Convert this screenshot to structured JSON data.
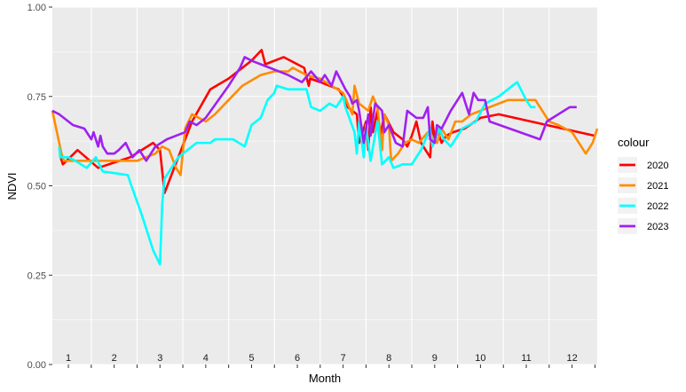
{
  "chart_data": {
    "type": "line",
    "xlabel": "Month",
    "ylabel": "NDVI",
    "xlim": [
      0.65,
      12.55
    ],
    "ylim": [
      0,
      1
    ],
    "yticks": [
      "0.00",
      "0.25",
      "0.50",
      "0.75",
      "1.00"
    ],
    "month_labels": [
      "1",
      "2",
      "3",
      "4",
      "5",
      "6",
      "7",
      "8",
      "9",
      "10",
      "11",
      "12"
    ],
    "legend": {
      "title": "colour",
      "position": "right"
    },
    "grid": true,
    "series": [
      {
        "name": "2020",
        "color": "#ff0000",
        "points": [
          [
            0.83,
            0.58
          ],
          [
            0.88,
            0.56
          ],
          [
            1.2,
            0.6
          ],
          [
            1.65,
            0.55
          ],
          [
            2.35,
            0.58
          ],
          [
            2.85,
            0.62
          ],
          [
            3.0,
            0.6
          ],
          [
            3.1,
            0.48
          ],
          [
            3.4,
            0.58
          ],
          [
            3.7,
            0.68
          ],
          [
            4.1,
            0.77
          ],
          [
            4.5,
            0.8
          ],
          [
            5.0,
            0.85
          ],
          [
            5.22,
            0.88
          ],
          [
            5.3,
            0.84
          ],
          [
            5.7,
            0.86
          ],
          [
            6.15,
            0.83
          ],
          [
            6.25,
            0.78
          ],
          [
            6.28,
            0.8
          ],
          [
            6.5,
            0.79
          ],
          [
            6.7,
            0.78
          ],
          [
            6.9,
            0.77
          ],
          [
            7.05,
            0.74
          ],
          [
            7.1,
            0.72
          ],
          [
            7.3,
            0.7
          ],
          [
            7.35,
            0.62
          ],
          [
            7.5,
            0.68
          ],
          [
            7.55,
            0.6
          ],
          [
            7.6,
            0.72
          ],
          [
            7.65,
            0.65
          ],
          [
            7.75,
            0.71
          ],
          [
            7.8,
            0.63
          ],
          [
            7.9,
            0.7
          ],
          [
            8.1,
            0.65
          ],
          [
            8.3,
            0.63
          ],
          [
            8.4,
            0.61
          ],
          [
            8.5,
            0.64
          ],
          [
            8.6,
            0.68
          ],
          [
            8.7,
            0.62
          ],
          [
            8.9,
            0.58
          ],
          [
            8.95,
            0.68
          ],
          [
            9.0,
            0.63
          ],
          [
            9.05,
            0.66
          ],
          [
            9.15,
            0.62
          ],
          [
            9.25,
            0.64
          ],
          [
            9.4,
            0.65
          ],
          [
            9.65,
            0.66
          ],
          [
            10.0,
            0.69
          ],
          [
            10.4,
            0.7
          ],
          [
            12.5,
            0.64
          ]
        ]
      },
      {
        "name": "2021",
        "color": "#ff8c00",
        "points": [
          [
            0.65,
            0.71
          ],
          [
            0.85,
            0.59
          ],
          [
            0.9,
            0.57
          ],
          [
            1.4,
            0.57
          ],
          [
            2.0,
            0.57
          ],
          [
            2.5,
            0.57
          ],
          [
            2.9,
            0.59
          ],
          [
            3.05,
            0.61
          ],
          [
            3.2,
            0.6
          ],
          [
            3.35,
            0.55
          ],
          [
            3.45,
            0.53
          ],
          [
            3.55,
            0.66
          ],
          [
            3.7,
            0.7
          ],
          [
            4.0,
            0.68
          ],
          [
            4.2,
            0.7
          ],
          [
            4.5,
            0.74
          ],
          [
            4.8,
            0.78
          ],
          [
            5.2,
            0.81
          ],
          [
            5.5,
            0.82
          ],
          [
            5.8,
            0.82
          ],
          [
            5.9,
            0.83
          ],
          [
            6.2,
            0.81
          ],
          [
            6.5,
            0.8
          ],
          [
            6.75,
            0.78
          ],
          [
            7.0,
            0.76
          ],
          [
            7.1,
            0.73
          ],
          [
            7.2,
            0.7
          ],
          [
            7.25,
            0.78
          ],
          [
            7.35,
            0.73
          ],
          [
            7.55,
            0.71
          ],
          [
            7.65,
            0.75
          ],
          [
            7.75,
            0.72
          ],
          [
            7.85,
            0.6
          ],
          [
            7.9,
            0.7
          ],
          [
            8.0,
            0.67
          ],
          [
            8.05,
            0.57
          ],
          [
            8.2,
            0.59
          ],
          [
            8.35,
            0.62
          ],
          [
            8.5,
            0.63
          ],
          [
            8.65,
            0.62
          ],
          [
            8.85,
            0.65
          ],
          [
            9.05,
            0.62
          ],
          [
            9.15,
            0.66
          ],
          [
            9.3,
            0.63
          ],
          [
            9.45,
            0.68
          ],
          [
            9.6,
            0.68
          ],
          [
            9.8,
            0.7
          ],
          [
            10.2,
            0.72
          ],
          [
            10.6,
            0.74
          ],
          [
            11.2,
            0.74
          ],
          [
            11.5,
            0.68
          ],
          [
            11.7,
            0.67
          ],
          [
            12.0,
            0.65
          ],
          [
            12.3,
            0.59
          ],
          [
            12.45,
            0.62
          ],
          [
            12.55,
            0.66
          ]
        ]
      },
      {
        "name": "2022",
        "color": "#00ffff",
        "points": [
          [
            0.8,
            0.61
          ],
          [
            0.82,
            0.58
          ],
          [
            1.0,
            0.58
          ],
          [
            1.15,
            0.57
          ],
          [
            1.4,
            0.55
          ],
          [
            1.6,
            0.58
          ],
          [
            1.75,
            0.54
          ],
          [
            2.3,
            0.53
          ],
          [
            2.35,
            0.51
          ],
          [
            2.6,
            0.42
          ],
          [
            2.85,
            0.32
          ],
          [
            3.0,
            0.28
          ],
          [
            3.05,
            0.45
          ],
          [
            3.1,
            0.52
          ],
          [
            3.4,
            0.58
          ],
          [
            3.8,
            0.62
          ],
          [
            4.1,
            0.62
          ],
          [
            4.2,
            0.63
          ],
          [
            4.6,
            0.63
          ],
          [
            4.85,
            0.61
          ],
          [
            5.0,
            0.67
          ],
          [
            5.2,
            0.69
          ],
          [
            5.35,
            0.74
          ],
          [
            5.5,
            0.76
          ],
          [
            5.55,
            0.78
          ],
          [
            5.8,
            0.77
          ],
          [
            6.2,
            0.77
          ],
          [
            6.3,
            0.72
          ],
          [
            6.5,
            0.71
          ],
          [
            6.7,
            0.73
          ],
          [
            6.85,
            0.72
          ],
          [
            7.0,
            0.75
          ],
          [
            7.05,
            0.72
          ],
          [
            7.25,
            0.65
          ],
          [
            7.3,
            0.59
          ],
          [
            7.35,
            0.68
          ],
          [
            7.45,
            0.58
          ],
          [
            7.5,
            0.67
          ],
          [
            7.6,
            0.57
          ],
          [
            7.75,
            0.68
          ],
          [
            7.85,
            0.56
          ],
          [
            8.0,
            0.58
          ],
          [
            8.1,
            0.55
          ],
          [
            8.3,
            0.56
          ],
          [
            8.5,
            0.56
          ],
          [
            8.7,
            0.6
          ],
          [
            8.8,
            0.63
          ],
          [
            8.9,
            0.66
          ],
          [
            8.95,
            0.61
          ],
          [
            9.1,
            0.66
          ],
          [
            9.2,
            0.63
          ],
          [
            9.35,
            0.61
          ],
          [
            9.6,
            0.66
          ],
          [
            9.75,
            0.67
          ],
          [
            9.9,
            0.68
          ],
          [
            10.1,
            0.73
          ],
          [
            10.4,
            0.75
          ],
          [
            10.7,
            0.78
          ],
          [
            10.8,
            0.79
          ],
          [
            11.0,
            0.74
          ],
          [
            11.1,
            0.72
          ],
          [
            11.2,
            0.72
          ]
        ]
      },
      {
        "name": "2023",
        "color": "#a020f0",
        "points": [
          [
            0.65,
            0.71
          ],
          [
            0.8,
            0.7
          ],
          [
            1.1,
            0.67
          ],
          [
            1.35,
            0.66
          ],
          [
            1.4,
            0.65
          ],
          [
            1.5,
            0.63
          ],
          [
            1.55,
            0.65
          ],
          [
            1.65,
            0.61
          ],
          [
            1.7,
            0.64
          ],
          [
            1.75,
            0.61
          ],
          [
            1.85,
            0.59
          ],
          [
            2.0,
            0.59
          ],
          [
            2.1,
            0.6
          ],
          [
            2.25,
            0.62
          ],
          [
            2.4,
            0.58
          ],
          [
            2.55,
            0.6
          ],
          [
            2.7,
            0.57
          ],
          [
            2.9,
            0.61
          ],
          [
            3.15,
            0.63
          ],
          [
            3.55,
            0.65
          ],
          [
            3.65,
            0.68
          ],
          [
            3.8,
            0.67
          ],
          [
            4.0,
            0.69
          ],
          [
            4.5,
            0.78
          ],
          [
            4.75,
            0.83
          ],
          [
            4.85,
            0.86
          ],
          [
            5.0,
            0.85
          ],
          [
            5.4,
            0.83
          ],
          [
            5.8,
            0.81
          ],
          [
            6.1,
            0.79
          ],
          [
            6.3,
            0.82
          ],
          [
            6.5,
            0.79
          ],
          [
            6.6,
            0.81
          ],
          [
            6.75,
            0.78
          ],
          [
            6.85,
            0.82
          ],
          [
            7.05,
            0.77
          ],
          [
            7.15,
            0.75
          ],
          [
            7.2,
            0.73
          ],
          [
            7.3,
            0.74
          ],
          [
            7.35,
            0.71
          ],
          [
            7.45,
            0.62
          ],
          [
            7.55,
            0.7
          ],
          [
            7.6,
            0.64
          ],
          [
            7.7,
            0.73
          ],
          [
            7.85,
            0.71
          ],
          [
            7.9,
            0.65
          ],
          [
            8.0,
            0.67
          ],
          [
            8.15,
            0.62
          ],
          [
            8.3,
            0.61
          ],
          [
            8.4,
            0.71
          ],
          [
            8.6,
            0.69
          ],
          [
            8.75,
            0.69
          ],
          [
            8.85,
            0.72
          ],
          [
            8.9,
            0.63
          ],
          [
            9.0,
            0.62
          ],
          [
            9.05,
            0.67
          ],
          [
            9.15,
            0.66
          ],
          [
            9.35,
            0.71
          ],
          [
            9.6,
            0.76
          ],
          [
            9.75,
            0.7
          ],
          [
            9.85,
            0.76
          ],
          [
            9.95,
            0.74
          ],
          [
            10.1,
            0.74
          ],
          [
            10.2,
            0.68
          ],
          [
            11.3,
            0.63
          ],
          [
            11.45,
            0.68
          ],
          [
            11.95,
            0.72
          ],
          [
            12.1,
            0.72
          ]
        ]
      }
    ]
  }
}
